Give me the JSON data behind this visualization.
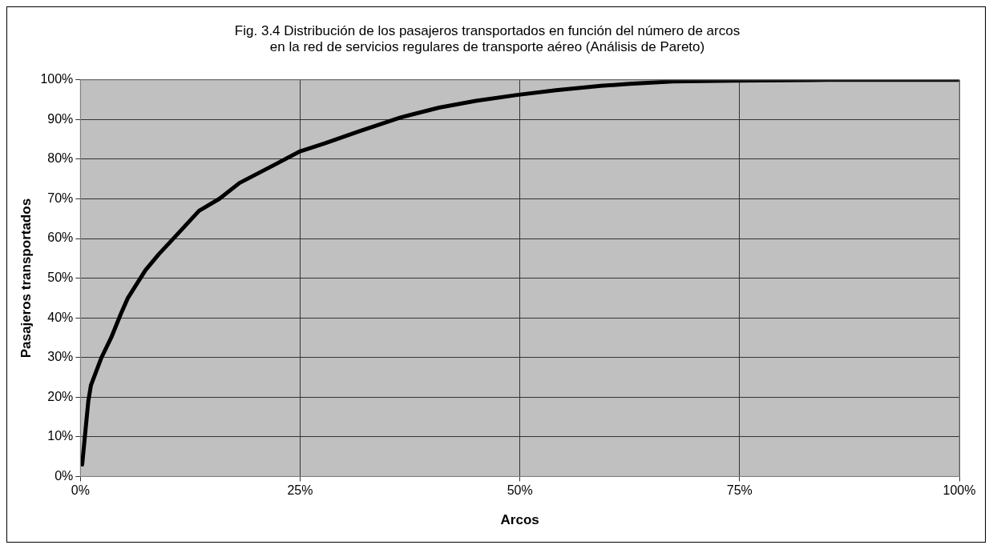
{
  "chart_data": {
    "type": "line",
    "title": "Fig. 3.4 Distribución de los pasajeros transportados en función del número de arcos\nen la red de servicios regulares de transporte aéreo (Análisis de Pareto)",
    "xlabel": "Arcos",
    "ylabel": "Pasajeros transportados",
    "series": [
      {
        "color": "#000000",
        "x": [
          0.2,
          0.9,
          1.2,
          2.4,
          3.5,
          4.6,
          5.4,
          7.4,
          8.9,
          11,
          13.5,
          15.8,
          18.1,
          22,
          25,
          27.8,
          31.7,
          36.4,
          40.8,
          45,
          49.7,
          54.1,
          59.2,
          62.5,
          67.4,
          74.5,
          85,
          100
        ],
        "values": [
          3,
          19,
          23,
          30,
          35,
          41,
          45,
          52,
          56,
          61,
          67,
          70,
          74,
          78.5,
          82,
          84,
          87,
          90.5,
          93,
          94.7,
          96.2,
          97.4,
          98.5,
          99,
          99.6,
          99.8,
          100,
          100
        ]
      }
    ],
    "xlim": [
      0,
      100
    ],
    "xticks": [
      {
        "value": 0,
        "label": "0%"
      },
      {
        "value": 25,
        "label": "25%"
      },
      {
        "value": 50,
        "label": "50%"
      },
      {
        "value": 75,
        "label": "75%"
      },
      {
        "value": 100,
        "label": "100%"
      }
    ],
    "ylim": [
      0,
      100
    ],
    "yticks": [
      {
        "value": 0,
        "label": "0%"
      },
      {
        "value": 10,
        "label": "10%"
      },
      {
        "value": 20,
        "label": "20%"
      },
      {
        "value": 30,
        "label": "30%"
      },
      {
        "value": 40,
        "label": "40%"
      },
      {
        "value": 50,
        "label": "50%"
      },
      {
        "value": 60,
        "label": "60%"
      },
      {
        "value": 70,
        "label": "70%"
      },
      {
        "value": 80,
        "label": "80%"
      },
      {
        "value": 90,
        "label": "90%"
      },
      {
        "value": 100,
        "label": "100%"
      }
    ],
    "grid": true,
    "legend": false,
    "marker": "none",
    "line_style": "solid"
  }
}
